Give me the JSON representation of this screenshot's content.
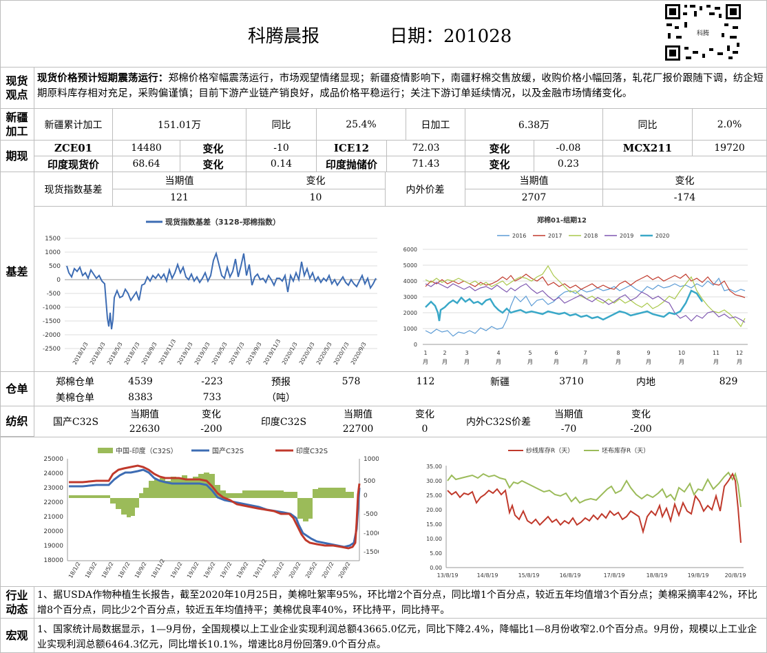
{
  "header": {
    "title": "科腾晨报",
    "date_label": "日期：201028",
    "qr_text": "科腾"
  },
  "spot": {
    "label": [
      "现货",
      "观点"
    ],
    "lead": "现货价格预计短期震荡运行：",
    "body": "郑棉价格窄幅震荡运行，市场观望情绪显现；新疆疫情影响下，南疆籽棉交售放缓，收购价格小幅回落，轧花厂报价跟随下调，纺企短期原料库存相对充足，采购偏谨慎；目前下游产业链产销良好，成品价格平稳运行；关注下游订单延续情况，以及金融市场情绪变化。"
  },
  "xinjiang": {
    "label": [
      "新疆",
      "加工"
    ],
    "cells": [
      "新疆累计加工",
      "151.01万",
      "同比",
      "25.4%",
      "日加工",
      "6.38万",
      "同比",
      "2.0%"
    ]
  },
  "futures": {
    "label": "期现",
    "row1": [
      "ZCE01",
      "14480",
      "变化",
      "-10",
      "ICE12",
      "72.03",
      "变化",
      "-0.08",
      "MCX211",
      "19720"
    ],
    "row2": [
      "印度现货价",
      "68.64",
      "变化",
      "0.14",
      "印度抛储价",
      "71.43",
      "变化",
      "0.23"
    ]
  },
  "basis": {
    "label": "基差",
    "hdr": [
      "现货指数基差",
      "当期值",
      "变化",
      "内外价差",
      "当期值",
      "变化"
    ],
    "vals": [
      "121",
      "10",
      "2707",
      "-174"
    ]
  },
  "chart1": {
    "legend": "现货指数基差（3128-郑棉指数）",
    "y_ticks": [
      "1500",
      "1000",
      "500",
      "0",
      "-500",
      "-1000",
      "-1500",
      "-2000",
      "-2500"
    ],
    "x_ticks": [
      "2018/1/3",
      "2018/3/3",
      "2018/5/3",
      "2018/7/3",
      "2018/9/3",
      "2018/11/3",
      "2019/1/3",
      "2019/3/3",
      "2019/5/3",
      "2019/7/3",
      "2019/9/3",
      "2019/11/3",
      "2020/1/3",
      "2020/3/3",
      "2020/5/3",
      "2020/7/3",
      "2020/9/3"
    ]
  },
  "chart2": {
    "title": "郑棉01-组期12",
    "legend": [
      "2016",
      "2017",
      "2018",
      "2019",
      "2020"
    ],
    "colors": [
      "#5b9bd5",
      "#c0392b",
      "#a9c84a",
      "#7e57b0",
      "#3aa8c8"
    ],
    "y_ticks": [
      "6000",
      "5000",
      "4000",
      "3000",
      "2000",
      "1000",
      "0"
    ],
    "x_ticks": [
      "1",
      "2",
      "3",
      "4",
      "5",
      "6",
      "7",
      "8",
      "9",
      "10",
      "11",
      "12"
    ],
    "month": "月"
  },
  "warehouse": {
    "label": "仓单",
    "row1": [
      "郑棉仓单",
      "4539",
      "-223",
      "预报",
      "578",
      "112",
      "新疆",
      "3710",
      "内地",
      "829"
    ],
    "row2": [
      "美棉仓单",
      "8383",
      "733",
      "（吨）"
    ]
  },
  "yarn": {
    "label": "纺织",
    "hdr": [
      "当期值",
      "变化",
      "当期值",
      "变化",
      "当期值",
      "变化"
    ],
    "names": [
      "国产C32S",
      "印度C32S",
      "内外C32S价差"
    ],
    "vals": [
      "22630",
      "-200",
      "22700",
      "0",
      "-70",
      "-200"
    ]
  },
  "chart3": {
    "legend": [
      "中国-印度（C32S）",
      "国产C32S",
      "印度C32S"
    ],
    "y_left": [
      "25000",
      "24000",
      "23000",
      "22000",
      "21000",
      "20000",
      "19000",
      "18000"
    ],
    "y_right": [
      "1000",
      "500",
      "0",
      "-500",
      "-1000",
      "-1500"
    ],
    "x_ticks": [
      "18/1/2",
      "18/3/2",
      "18/5/2",
      "18/7/2",
      "18/9/2",
      "18/11/2",
      "19/1/2",
      "19/3/2",
      "19/5/2",
      "19/7/2",
      "19/9/2",
      "19/11/2",
      "20/1/2",
      "20/3/2",
      "20/5/2",
      "20/7/2",
      "20/9/2"
    ]
  },
  "chart4": {
    "legend": [
      "纱线库存R（天）",
      "坯布库存R（天）"
    ],
    "y_ticks": [
      "35.00",
      "30.00",
      "25.00",
      "20.00",
      "15.00",
      "10.00",
      "5.00",
      "0.00"
    ],
    "x_ticks": [
      "13/8/19",
      "14/8/19",
      "15/8/19",
      "16/8/19",
      "17/8/19",
      "18/8/19",
      "19/8/19",
      "20/8/19"
    ]
  },
  "industry": {
    "label": [
      "行业",
      "动态"
    ],
    "text": "1、据USDA作物种植生长报告，截至2020年10月25日，美棉吐絮率95%，环比增2个百分点，同比增1个百分点，较近五年均值增3个百分点；美棉采摘率42%，环比增8个百分点，同比少2个百分点，较近五年均值持平；美棉优良率40%，环比持平，同比持平。"
  },
  "macro": {
    "label": "宏观",
    "text": "1、国家统计局数据显示，1—9月份，全国规模以上工业企业实现利润总额43665.0亿元，同比下降2.4%，降幅比1—8月份收窄2.0个百分点。9月份，规模以上工业企业实现利润总额6464.3亿元，同比增长10.1%，增速比8月份回落9.0个百分点。"
  }
}
